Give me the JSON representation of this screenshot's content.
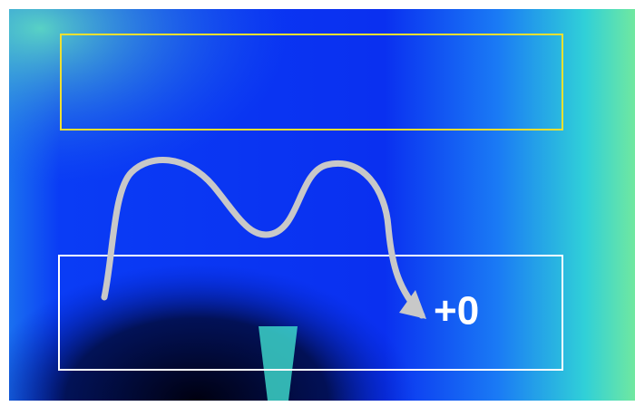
{
  "overlay": {
    "label": "+0"
  }
}
